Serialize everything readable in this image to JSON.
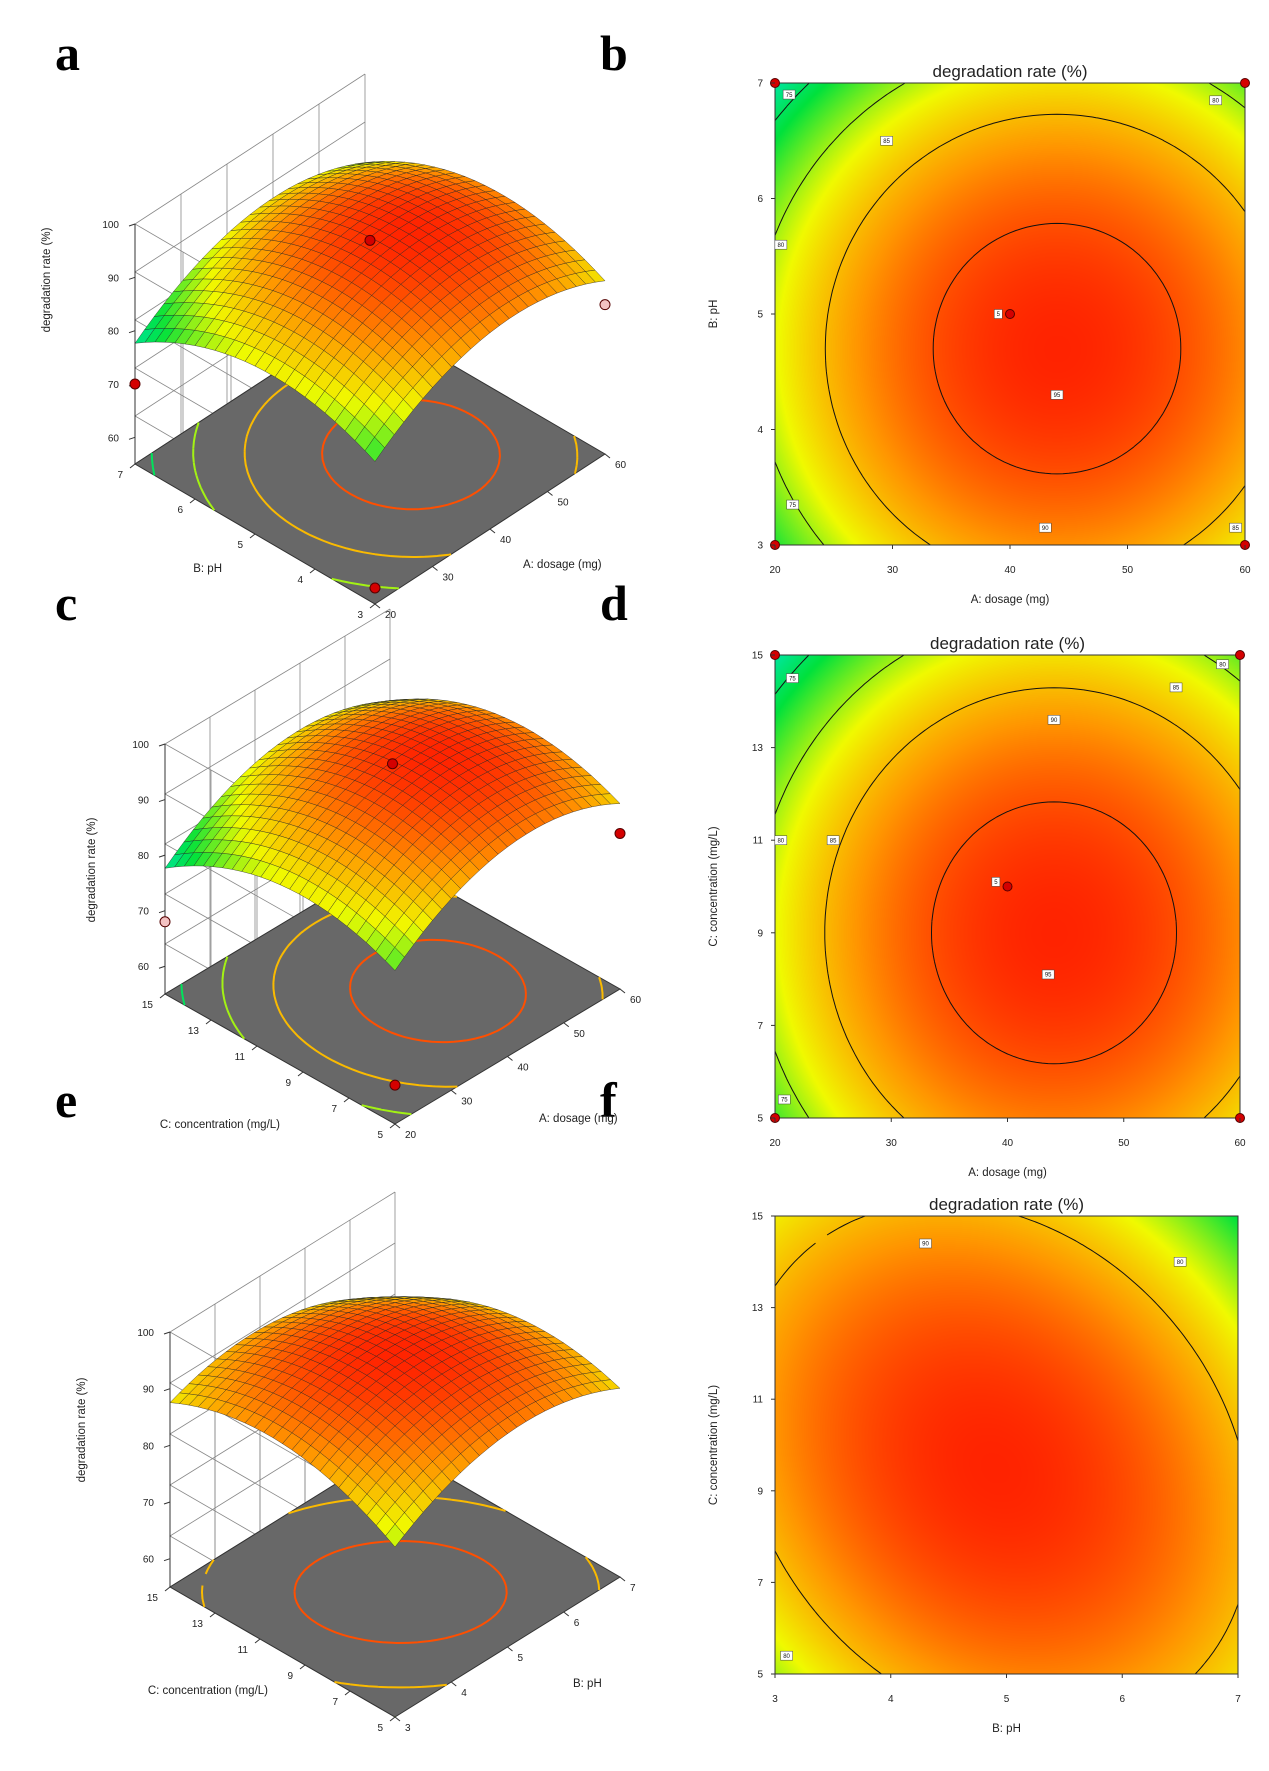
{
  "panel_letters": [
    "a",
    "b",
    "c",
    "d",
    "e",
    "f"
  ],
  "chart_data": [
    {
      "panel": "a",
      "type": "surface3d",
      "xlabel": "A: dosage (mg)",
      "ylabel": "B: pH",
      "zlabel": "degradation rate (%)",
      "x_ticks": [
        "20",
        "30",
        "40",
        "50",
        "60"
      ],
      "y_ticks": [
        "3",
        "4",
        "5",
        "6",
        "7"
      ],
      "z_ticks": [
        "60",
        "70",
        "80",
        "90",
        "100"
      ],
      "xlim": [
        20,
        60
      ],
      "ylim": [
        3,
        7
      ],
      "zlim": [
        55,
        100
      ],
      "model": {
        "x0": 44,
        "y0": 4.7,
        "peak": 97,
        "kx": 0.018,
        "ky": 1.7,
        "kxy": 0
      },
      "design_points": [
        {
          "x": 40,
          "y": 5,
          "z": 96
        },
        {
          "x": 20,
          "y": 7,
          "z": 70
        },
        {
          "x": 60,
          "y": 3,
          "z": 83
        },
        {
          "x": 20,
          "y": 3,
          "z": 58
        }
      ]
    },
    {
      "panel": "b",
      "type": "contour",
      "title": "degradation rate (%)",
      "xlabel": "A: dosage (mg)",
      "ylabel": "B: pH",
      "x_ticks": [
        "20",
        "30",
        "40",
        "50",
        "60"
      ],
      "y_ticks": [
        "3",
        "4",
        "5",
        "6",
        "7"
      ],
      "xlim": [
        20,
        60
      ],
      "ylim": [
        3,
        7
      ],
      "model": {
        "x0": 44,
        "y0": 4.7,
        "peak": 97,
        "kx": 0.018,
        "ky": 1.7,
        "kxy": 0
      },
      "contour_levels": [
        75,
        80,
        85,
        90,
        95
      ],
      "contour_labels": [
        {
          "text": "75",
          "x": 21.2,
          "y": 6.9
        },
        {
          "text": "85",
          "x": 29.5,
          "y": 6.5
        },
        {
          "text": "80",
          "x": 57.5,
          "y": 6.85
        },
        {
          "text": "80",
          "x": 20.5,
          "y": 5.6
        },
        {
          "text": "95",
          "x": 44,
          "y": 4.3
        },
        {
          "text": "5",
          "x": 39,
          "y": 5.0
        },
        {
          "text": "75",
          "x": 21.5,
          "y": 3.35
        },
        {
          "text": "90",
          "x": 43,
          "y": 3.15
        },
        {
          "text": "85",
          "x": 59.2,
          "y": 3.15
        }
      ],
      "design_points": [
        {
          "x": 20,
          "y": 7
        },
        {
          "x": 60,
          "y": 7
        },
        {
          "x": 40,
          "y": 5
        },
        {
          "x": 20,
          "y": 3
        },
        {
          "x": 60,
          "y": 3
        }
      ]
    },
    {
      "panel": "c",
      "type": "surface3d",
      "xlabel": "A: dosage (mg)",
      "ylabel": "C: concentration (mg/L)",
      "zlabel": "degradation rate (%)",
      "x_ticks": [
        "20",
        "30",
        "40",
        "50",
        "60"
      ],
      "y_ticks": [
        "5",
        "7",
        "9",
        "11",
        "13",
        "15"
      ],
      "z_ticks": [
        "60",
        "70",
        "80",
        "90",
        "100"
      ],
      "xlim": [
        20,
        60
      ],
      "ylim": [
        5,
        15
      ],
      "zlim": [
        55,
        100
      ],
      "model": {
        "x0": 44,
        "y0": 9,
        "peak": 97,
        "kx": 0.018,
        "ky": 0.25,
        "kxy": 0
      },
      "design_points": [
        {
          "x": 40,
          "y": 10,
          "z": 96
        },
        {
          "x": 20,
          "y": 15,
          "z": 68
        },
        {
          "x": 60,
          "y": 5,
          "z": 83
        },
        {
          "x": 20,
          "y": 5,
          "z": 62
        }
      ]
    },
    {
      "panel": "d",
      "type": "contour",
      "title": "degradation rate (%)",
      "xlabel": "A: dosage (mg)",
      "ylabel": "C: concentration (mg/L)",
      "x_ticks": [
        "20",
        "30",
        "40",
        "50",
        "60"
      ],
      "y_ticks": [
        "5",
        "7",
        "9",
        "11",
        "13",
        "15"
      ],
      "xlim": [
        20,
        60
      ],
      "ylim": [
        5,
        15
      ],
      "model": {
        "x0": 44,
        "y0": 9,
        "peak": 97,
        "kx": 0.018,
        "ky": 0.25,
        "kxy": 0
      },
      "contour_levels": [
        75,
        80,
        85,
        90,
        95
      ],
      "contour_labels": [
        {
          "text": "75",
          "x": 21.5,
          "y": 14.5
        },
        {
          "text": "80",
          "x": 58.5,
          "y": 14.8
        },
        {
          "text": "85",
          "x": 54.5,
          "y": 14.3
        },
        {
          "text": "90",
          "x": 44,
          "y": 13.6
        },
        {
          "text": "80",
          "x": 20.5,
          "y": 11.0
        },
        {
          "text": "85",
          "x": 25,
          "y": 11.0
        },
        {
          "text": "5",
          "x": 39,
          "y": 10.1
        },
        {
          "text": "95",
          "x": 43.5,
          "y": 8.1
        },
        {
          "text": "75",
          "x": 20.8,
          "y": 5.4
        }
      ],
      "design_points": [
        {
          "x": 20,
          "y": 15
        },
        {
          "x": 60,
          "y": 15
        },
        {
          "x": 40,
          "y": 10
        },
        {
          "x": 20,
          "y": 5
        },
        {
          "x": 60,
          "y": 5
        }
      ]
    },
    {
      "panel": "e",
      "type": "surface3d",
      "xlabel": "B: pH",
      "ylabel": "C: concentration (mg/L)",
      "zlabel": "degradation rate (%)",
      "x_ticks": [
        "3",
        "4",
        "5",
        "6",
        "7"
      ],
      "y_ticks": [
        "5",
        "7",
        "9",
        "11",
        "13",
        "15"
      ],
      "z_ticks": [
        "60",
        "70",
        "80",
        "90",
        "100"
      ],
      "xlim": [
        3,
        7
      ],
      "ylim": [
        5,
        15
      ],
      "zlim": [
        55,
        100
      ],
      "model": {
        "x0": 4.9,
        "y0": 9.5,
        "peak": 97,
        "kx": 1.5,
        "ky": 0.22,
        "kxy": 0.25
      },
      "design_points": []
    },
    {
      "panel": "f",
      "type": "contour",
      "title": "degradation rate (%)",
      "xlabel": "B: pH",
      "ylabel": "C: concentration (mg/L)",
      "x_ticks": [
        "3",
        "4",
        "5",
        "6",
        "7"
      ],
      "y_ticks": [
        "5",
        "7",
        "9",
        "11",
        "13",
        "15"
      ],
      "xlim": [
        3,
        7
      ],
      "ylim": [
        5,
        15
      ],
      "model": {
        "x0": 4.9,
        "y0": 9.5,
        "peak": 97,
        "kx": 1.5,
        "ky": 0.22,
        "kxy": 0.25
      },
      "contour_levels": [
        80,
        90
      ],
      "contour_labels": [
        {
          "text": "90",
          "x": 4.3,
          "y": 14.4
        },
        {
          "text": "80",
          "x": 6.5,
          "y": 14.0
        },
        {
          "text": "80",
          "x": 3.1,
          "y": 5.4
        }
      ],
      "design_points": []
    }
  ]
}
